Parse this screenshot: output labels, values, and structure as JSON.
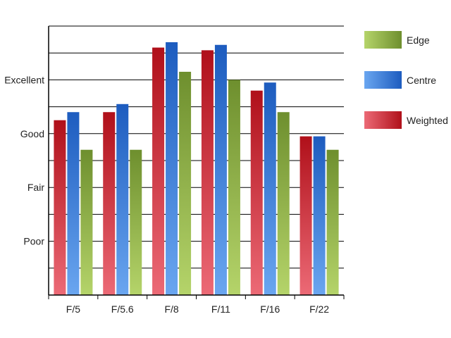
{
  "chart_data": {
    "type": "bar",
    "title": "",
    "xlabel": "",
    "ylabel": "",
    "categories": [
      "F/5",
      "F/5.6",
      "F/8",
      "F/11",
      "F/16",
      "F/22"
    ],
    "y_tick_labels": [
      {
        "label": "Poor",
        "value": 2
      },
      {
        "label": "Fair",
        "value": 4
      },
      {
        "label": "Good",
        "value": 6
      },
      {
        "label": "Excellent",
        "value": 8
      }
    ],
    "ylim": [
      0,
      10
    ],
    "grid": true,
    "legend_position": "right",
    "series": [
      {
        "name": "Weighted",
        "values": [
          6.5,
          6.8,
          9.2,
          9.1,
          7.6,
          5.9
        ],
        "color_dark": "#b0101a",
        "color_light": "#ec6a76"
      },
      {
        "name": "Centre",
        "values": [
          6.8,
          7.1,
          9.4,
          9.3,
          7.9,
          5.9
        ],
        "color_dark": "#1d5cbf",
        "color_light": "#6aa6f0"
      },
      {
        "name": "Edge",
        "values": [
          5.4,
          5.4,
          8.3,
          8.0,
          6.8,
          5.4
        ],
        "color_dark": "#6e8f2e",
        "color_light": "#b5d46a"
      }
    ],
    "legend_order": [
      "Edge",
      "Centre",
      "Weighted"
    ]
  }
}
